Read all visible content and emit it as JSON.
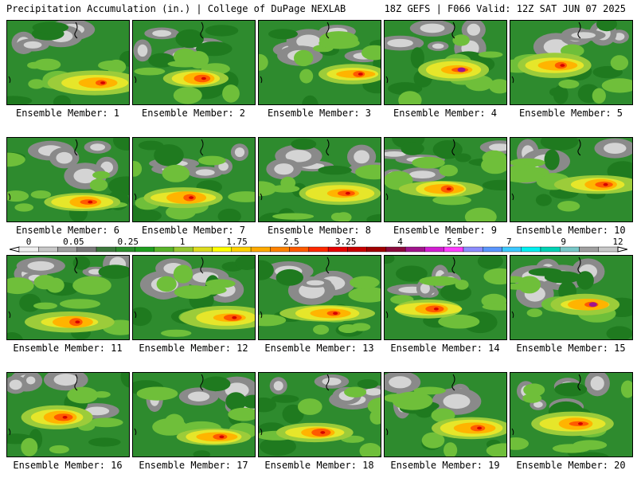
{
  "header": {
    "left": "Precipitation Accumulation (in.) | College of DuPage NEXLAB",
    "right": "18Z GEFS | F066 Valid: 12Z SAT JUN 07 2025"
  },
  "panels": [
    {
      "label": "Ensemble Member: 1"
    },
    {
      "label": "Ensemble Member: 2"
    },
    {
      "label": "Ensemble Member: 3"
    },
    {
      "label": "Ensemble Member: 4"
    },
    {
      "label": "Ensemble Member: 5"
    },
    {
      "label": "Ensemble Member: 6"
    },
    {
      "label": "Ensemble Member: 7"
    },
    {
      "label": "Ensemble Member: 8"
    },
    {
      "label": "Ensemble Member: 9"
    },
    {
      "label": "Ensemble Member: 10"
    },
    {
      "label": "Ensemble Member: 11"
    },
    {
      "label": "Ensemble Member: 12"
    },
    {
      "label": "Ensemble Member: 13"
    },
    {
      "label": "Ensemble Member: 14"
    },
    {
      "label": "Ensemble Member: 15"
    },
    {
      "label": "Ensemble Member: 16"
    },
    {
      "label": "Ensemble Member: 17"
    },
    {
      "label": "Ensemble Member: 18"
    },
    {
      "label": "Ensemble Member: 19"
    },
    {
      "label": "Ensemble Member: 20"
    }
  ],
  "colorbar": {
    "tick_labels": [
      "0",
      "0.05",
      "0.25",
      "1",
      "1.75",
      "2.5",
      "3.25",
      "4",
      "5.5",
      "7",
      "9",
      "12"
    ],
    "colors": [
      "#f0f0f0",
      "#c8c8c8",
      "#a0a0a0",
      "#7a7a7a",
      "#3c783c",
      "#2a8c2a",
      "#1e9e1e",
      "#58b42a",
      "#96c832",
      "#dcdc1e",
      "#ffff00",
      "#ffd200",
      "#ffaa00",
      "#ff8200",
      "#ff5a00",
      "#ff2800",
      "#e60000",
      "#c80000",
      "#a00000",
      "#8c0a3c",
      "#a0148c",
      "#d21ed2",
      "#ff3cff",
      "#8c8cff",
      "#5a96ff",
      "#3cc8ff",
      "#00f0f0",
      "#00d2b4",
      "#78c8c8",
      "#a0a0a0",
      "#c8c8c8"
    ]
  }
}
